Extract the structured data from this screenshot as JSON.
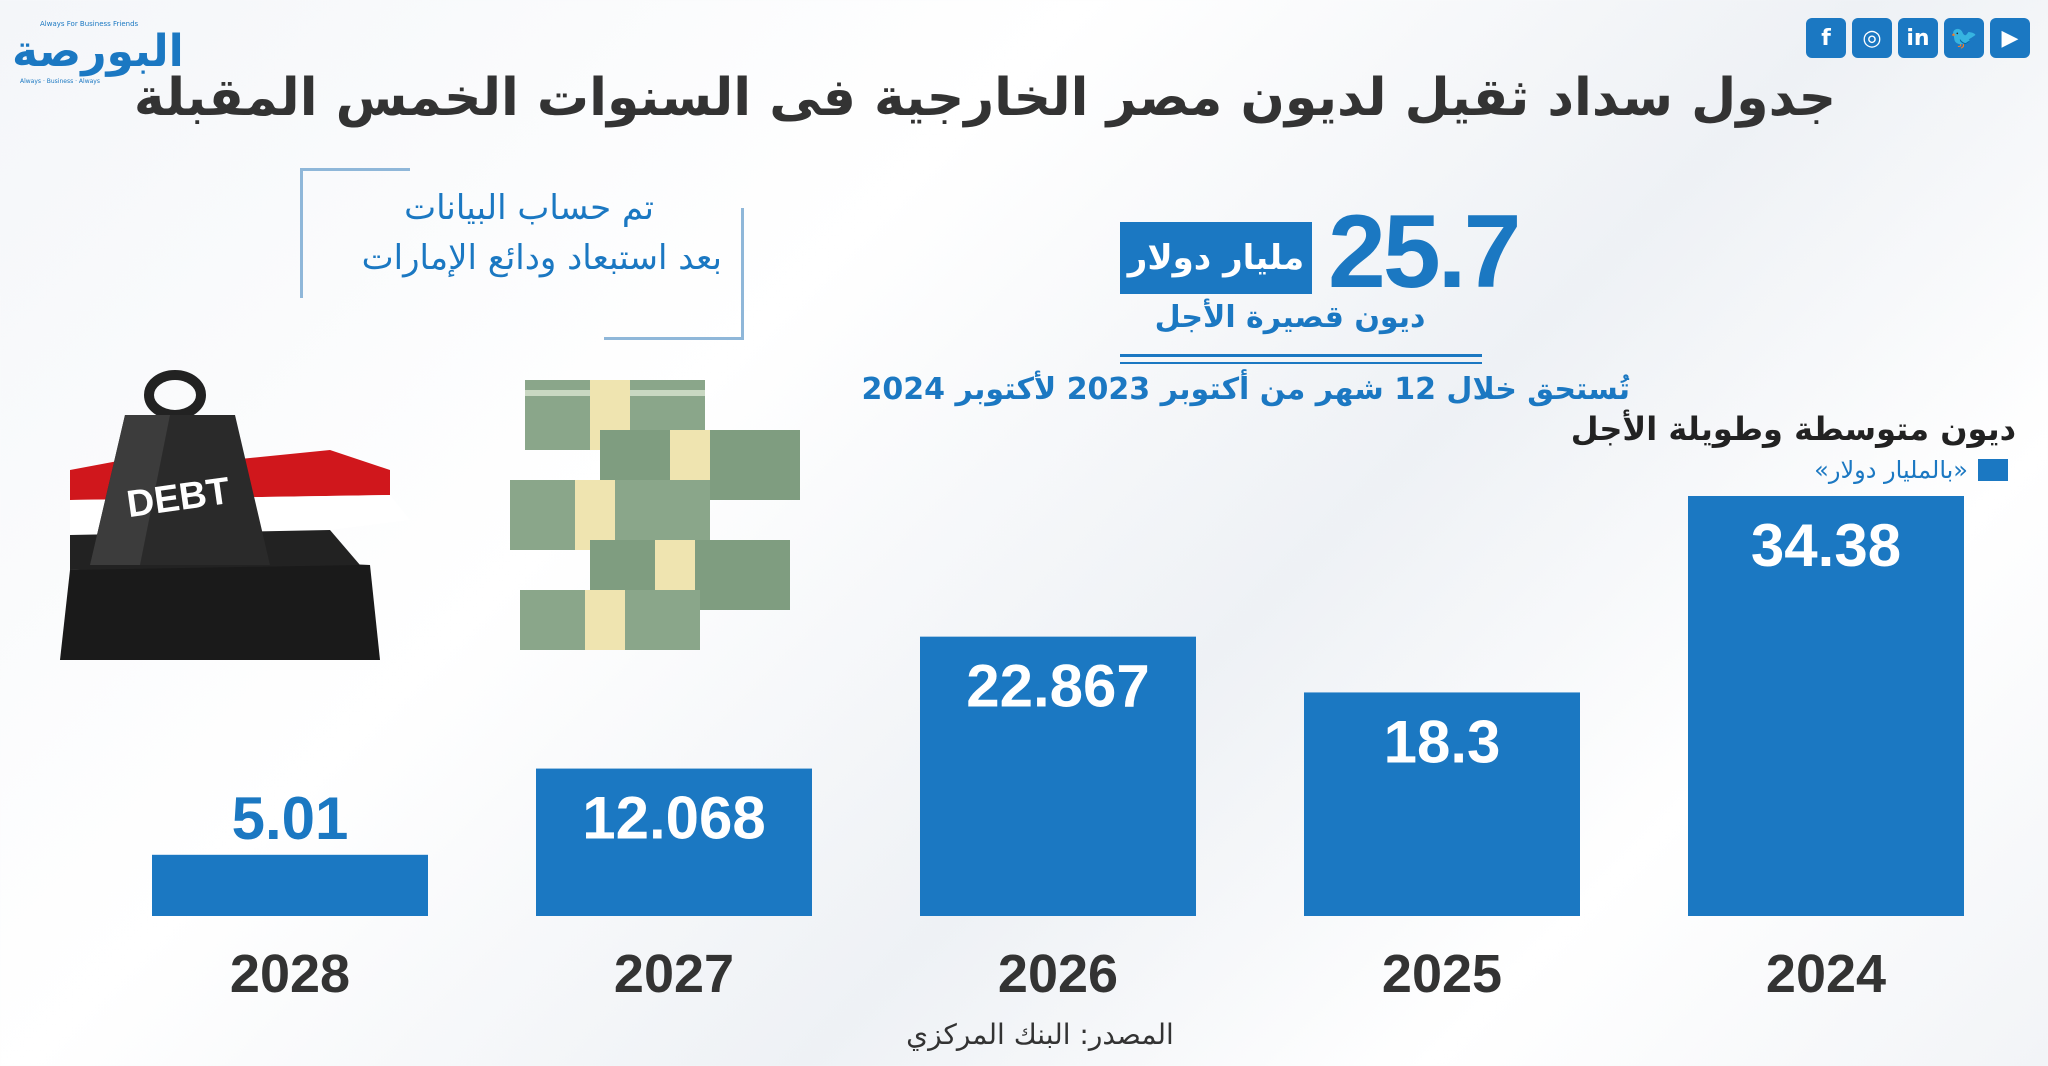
{
  "logo": {
    "name": "البورصة",
    "tagline": "Always For Business Friends",
    "sub": "Always · Business · Always"
  },
  "socials": [
    {
      "name": "facebook-icon",
      "glyph": "f"
    },
    {
      "name": "instagram-icon",
      "glyph": "◎"
    },
    {
      "name": "linkedin-icon",
      "glyph": "in"
    },
    {
      "name": "twitter-icon",
      "glyph": "🐦"
    },
    {
      "name": "youtube-icon",
      "glyph": "▶"
    }
  ],
  "title": "جدول سداد ثقيل لديون مصر الخارجية فى السنوات الخمس المقبلة",
  "note": {
    "line1": "تم حساب البيانات",
    "line2": "بعد استبعاد ودائع الإمارات"
  },
  "short_term": {
    "value": "25.7",
    "unit": "مليار دولار",
    "label": "ديون قصيرة الأجل",
    "due": "تُستحق خلال 12 شهر من أكتوبر 2023 لأكتوبر 2024"
  },
  "illustration": {
    "weight_label": "DEBT"
  },
  "chart_data": {
    "type": "bar",
    "title": "ديون متوسطة وطويلة الأجل",
    "ylabel": "«بالمليار دولار»",
    "categories": [
      "2028",
      "2027",
      "2026",
      "2025",
      "2024"
    ],
    "values": [
      5.01,
      12.068,
      22.867,
      18.3,
      34.38
    ],
    "labels": [
      "5.01",
      "12.068",
      "22.867",
      "18.3",
      "34.38"
    ],
    "ylim": [
      0,
      40
    ],
    "grid": false,
    "legend": "top-right",
    "color": "#1b78c2"
  },
  "source": "المصدر: البنك المركزي"
}
